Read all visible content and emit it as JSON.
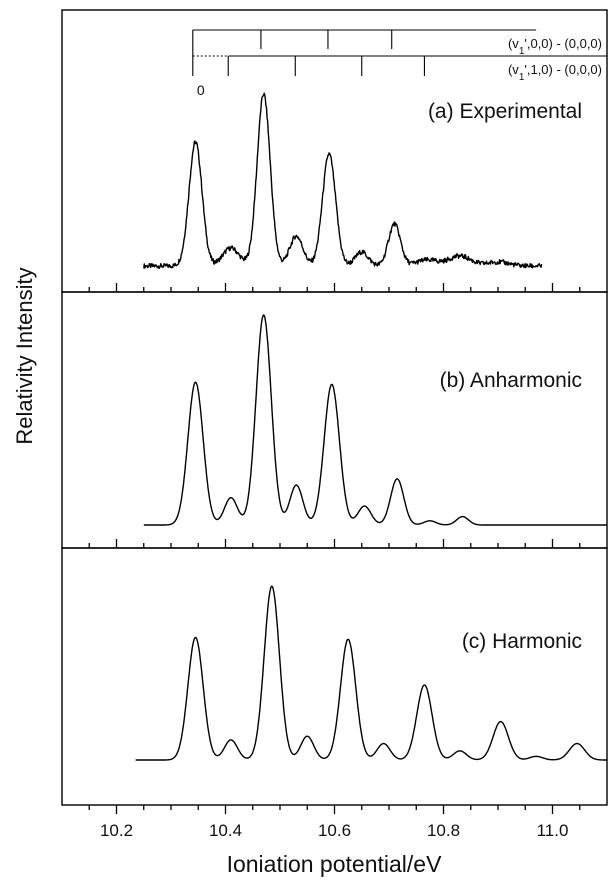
{
  "chart_data": {
    "type": "line",
    "xlabel": "Ioniation potential/eV",
    "ylabel": "Relativity Intensity",
    "xlim": [
      10.1,
      11.1
    ],
    "x_tick_labels": [
      "10.2",
      "10.4",
      "10.6",
      "10.8",
      "11.0"
    ],
    "x_tick_values": [
      10.2,
      10.4,
      10.6,
      10.8,
      11.0
    ],
    "x_minor_step": 0.05,
    "grid": false,
    "progressions": [
      {
        "label": "(v1',0,0) - (0,0,0)",
        "origin": 10.34,
        "positions": [
          10.34,
          10.465,
          10.588,
          10.705,
          10.97
        ]
      },
      {
        "label": "(v1',1,0) - (0,0,0)",
        "origin": 10.34,
        "positions": [
          10.405,
          10.528,
          10.65,
          10.765,
          11.08
        ]
      }
    ],
    "origin_label": "0",
    "panels": [
      {
        "label": "(a) Experimental",
        "x_range": [
          10.25,
          10.98
        ],
        "baseline": 0.0,
        "noise": 0.012,
        "peaks": [
          {
            "x": 10.345,
            "height": 0.62,
            "width": 0.012
          },
          {
            "x": 10.41,
            "height": 0.09,
            "width": 0.015
          },
          {
            "x": 10.47,
            "height": 0.86,
            "width": 0.012
          },
          {
            "x": 10.53,
            "height": 0.15,
            "width": 0.012
          },
          {
            "x": 10.59,
            "height": 0.56,
            "width": 0.012
          },
          {
            "x": 10.65,
            "height": 0.07,
            "width": 0.012
          },
          {
            "x": 10.71,
            "height": 0.21,
            "width": 0.011
          },
          {
            "x": 10.77,
            "height": 0.03,
            "width": 0.02
          },
          {
            "x": 10.83,
            "height": 0.05,
            "width": 0.02
          },
          {
            "x": 10.9,
            "height": 0.02,
            "width": 0.02
          }
        ]
      },
      {
        "label": "(b) Anharmonic",
        "x_range": [
          10.25,
          11.1
        ],
        "baseline": 0.0,
        "noise": 0,
        "peaks": [
          {
            "x": 10.345,
            "height": 0.68,
            "width": 0.014
          },
          {
            "x": 10.41,
            "height": 0.13,
            "width": 0.012
          },
          {
            "x": 10.47,
            "height": 1.0,
            "width": 0.014
          },
          {
            "x": 10.53,
            "height": 0.19,
            "width": 0.012
          },
          {
            "x": 10.595,
            "height": 0.67,
            "width": 0.014
          },
          {
            "x": 10.655,
            "height": 0.09,
            "width": 0.012
          },
          {
            "x": 10.715,
            "height": 0.22,
            "width": 0.012
          },
          {
            "x": 10.775,
            "height": 0.02,
            "width": 0.011
          },
          {
            "x": 10.835,
            "height": 0.04,
            "width": 0.011
          }
        ]
      },
      {
        "label": "(c) Harmonic",
        "x_range": [
          10.235,
          11.1
        ],
        "baseline": 0.0,
        "noise": 0,
        "peaks": [
          {
            "x": 10.345,
            "height": 0.67,
            "width": 0.014
          },
          {
            "x": 10.41,
            "height": 0.11,
            "width": 0.012
          },
          {
            "x": 10.485,
            "height": 0.95,
            "width": 0.014
          },
          {
            "x": 10.55,
            "height": 0.13,
            "width": 0.012
          },
          {
            "x": 10.625,
            "height": 0.66,
            "width": 0.014
          },
          {
            "x": 10.69,
            "height": 0.09,
            "width": 0.012
          },
          {
            "x": 10.765,
            "height": 0.41,
            "width": 0.014
          },
          {
            "x": 10.83,
            "height": 0.05,
            "width": 0.012
          },
          {
            "x": 10.905,
            "height": 0.21,
            "width": 0.014
          },
          {
            "x": 10.97,
            "height": 0.02,
            "width": 0.012
          },
          {
            "x": 11.045,
            "height": 0.09,
            "width": 0.014
          }
        ]
      }
    ]
  }
}
